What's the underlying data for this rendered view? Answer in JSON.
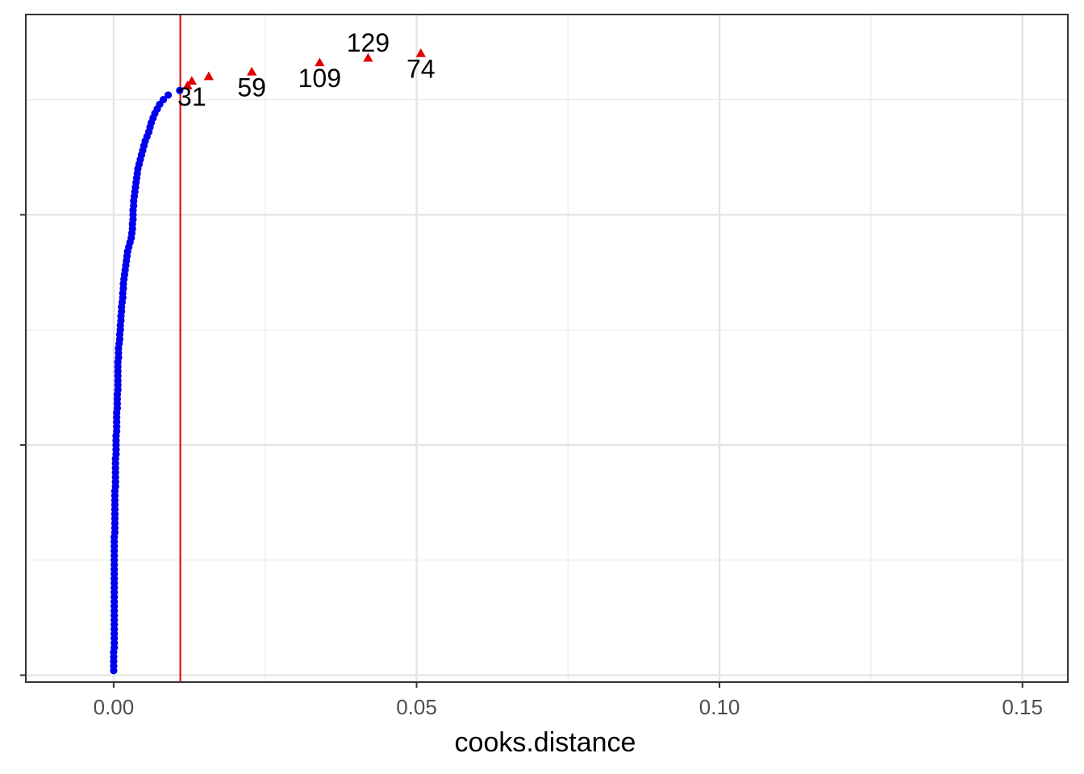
{
  "chart_data": {
    "type": "scatter",
    "title": "",
    "xlabel": "cooks.distance",
    "ylabel": "",
    "xlim": [
      -0.0145,
      0.1575
    ],
    "ylim": [
      -1.5,
      143.5
    ],
    "x_ticks": [
      0.0,
      0.05,
      0.1,
      0.15
    ],
    "x_tick_labels": [
      "0.00",
      "0.05",
      "0.10",
      "0.15"
    ],
    "x_minor_ticks": [
      0.025,
      0.075,
      0.125
    ],
    "y_major_ticks": [
      0,
      50,
      100
    ],
    "y_minor_ticks": [
      25,
      75,
      125
    ],
    "y_tick_labels_shown": false,
    "grid": true,
    "threshold": {
      "axis": "x",
      "value": 0.011,
      "color": "#e00000"
    },
    "series": [
      {
        "marker": "circle",
        "color": "#0000ee",
        "count": 126,
        "note_x": "sorted Cook's distances plotted against rank",
        "points": [
          [
            0.0,
            1
          ],
          [
            0.0,
            2
          ],
          [
            0.0,
            3
          ],
          [
            0.0,
            4
          ],
          [
            0.0,
            5
          ],
          [
            0.0001,
            6
          ],
          [
            0.0001,
            7
          ],
          [
            0.0001,
            8
          ],
          [
            0.0001,
            9
          ],
          [
            0.0001,
            10
          ],
          [
            0.0001,
            11
          ],
          [
            0.0001,
            12
          ],
          [
            0.0001,
            13
          ],
          [
            0.0001,
            14
          ],
          [
            0.0001,
            15
          ],
          [
            0.0001,
            16
          ],
          [
            0.0001,
            17
          ],
          [
            0.0001,
            18
          ],
          [
            0.0001,
            19
          ],
          [
            0.0001,
            20
          ],
          [
            0.0001,
            21
          ],
          [
            0.0001,
            22
          ],
          [
            0.0001,
            23
          ],
          [
            0.0001,
            24
          ],
          [
            0.0001,
            25
          ],
          [
            0.0001,
            26
          ],
          [
            0.0001,
            27
          ],
          [
            0.0001,
            28
          ],
          [
            0.0001,
            29
          ],
          [
            0.0001,
            30
          ],
          [
            0.0002,
            31
          ],
          [
            0.0002,
            32
          ],
          [
            0.0002,
            33
          ],
          [
            0.0002,
            34
          ],
          [
            0.0002,
            35
          ],
          [
            0.0002,
            36
          ],
          [
            0.0002,
            37
          ],
          [
            0.0002,
            38
          ],
          [
            0.0002,
            39
          ],
          [
            0.0002,
            40
          ],
          [
            0.0003,
            41
          ],
          [
            0.0003,
            42
          ],
          [
            0.0003,
            43
          ],
          [
            0.0003,
            44
          ],
          [
            0.0003,
            45
          ],
          [
            0.0003,
            46
          ],
          [
            0.0003,
            47
          ],
          [
            0.0004,
            48
          ],
          [
            0.0004,
            49
          ],
          [
            0.0004,
            50
          ],
          [
            0.0004,
            51
          ],
          [
            0.0004,
            52
          ],
          [
            0.0005,
            53
          ],
          [
            0.0005,
            54
          ],
          [
            0.0005,
            55
          ],
          [
            0.0005,
            56
          ],
          [
            0.0005,
            57
          ],
          [
            0.0006,
            58
          ],
          [
            0.0006,
            59
          ],
          [
            0.0006,
            60
          ],
          [
            0.0006,
            61
          ],
          [
            0.0007,
            62
          ],
          [
            0.0007,
            63
          ],
          [
            0.0007,
            64
          ],
          [
            0.0007,
            65
          ],
          [
            0.0007,
            66
          ],
          [
            0.0007,
            67
          ],
          [
            0.0007,
            68
          ],
          [
            0.0008,
            69
          ],
          [
            0.0008,
            70
          ],
          [
            0.0008,
            71
          ],
          [
            0.0009,
            72
          ],
          [
            0.001,
            73
          ],
          [
            0.001,
            74
          ],
          [
            0.0011,
            75
          ],
          [
            0.0011,
            76
          ],
          [
            0.0012,
            77
          ],
          [
            0.0012,
            78
          ],
          [
            0.0013,
            79
          ],
          [
            0.0013,
            80
          ],
          [
            0.0014,
            81
          ],
          [
            0.0015,
            82
          ],
          [
            0.0015,
            83
          ],
          [
            0.0016,
            84
          ],
          [
            0.0016,
            85
          ],
          [
            0.0017,
            86
          ],
          [
            0.0018,
            87
          ],
          [
            0.0019,
            88
          ],
          [
            0.002,
            89
          ],
          [
            0.0021,
            90
          ],
          [
            0.0022,
            91
          ],
          [
            0.0023,
            92
          ],
          [
            0.0025,
            93
          ],
          [
            0.0027,
            94
          ],
          [
            0.0029,
            95
          ],
          [
            0.003,
            96
          ],
          [
            0.0031,
            97
          ],
          [
            0.0031,
            98
          ],
          [
            0.0032,
            99
          ],
          [
            0.0032,
            100
          ],
          [
            0.0032,
            101
          ],
          [
            0.0033,
            102
          ],
          [
            0.0033,
            103
          ],
          [
            0.0034,
            104
          ],
          [
            0.0035,
            105
          ],
          [
            0.0036,
            106
          ],
          [
            0.0037,
            107
          ],
          [
            0.0038,
            108
          ],
          [
            0.0039,
            109
          ],
          [
            0.004,
            110
          ],
          [
            0.0042,
            111
          ],
          [
            0.0044,
            112
          ],
          [
            0.0046,
            113
          ],
          [
            0.0048,
            114
          ],
          [
            0.005,
            115
          ],
          [
            0.0052,
            116
          ],
          [
            0.0055,
            117
          ],
          [
            0.0058,
            118
          ],
          [
            0.006,
            119
          ],
          [
            0.0062,
            120
          ],
          [
            0.0065,
            121
          ],
          [
            0.0068,
            122
          ],
          [
            0.0072,
            123
          ],
          [
            0.0076,
            124
          ],
          [
            0.0082,
            125
          ],
          [
            0.009,
            126
          ]
        ]
      },
      {
        "marker": "circle",
        "color": "#0000ee",
        "points": [
          [
            0.0109,
            127
          ]
        ]
      },
      {
        "marker": "triangle",
        "color": "#e00000",
        "points": [
          [
            0.0122,
            128,
            ""
          ],
          [
            0.0129,
            129,
            "31"
          ],
          [
            0.0157,
            130,
            ""
          ],
          [
            0.0228,
            131,
            "59"
          ],
          [
            0.034,
            133,
            "109"
          ],
          [
            0.042,
            134,
            "129"
          ],
          [
            0.0507,
            135,
            "74"
          ]
        ]
      }
    ],
    "labels": [
      {
        "text": "31",
        "x": 0.0129,
        "y": 129,
        "pos": "below"
      },
      {
        "text": "59",
        "x": 0.0228,
        "y": 131,
        "pos": "below"
      },
      {
        "text": "109",
        "x": 0.034,
        "y": 133,
        "pos": "below"
      },
      {
        "text": "129",
        "x": 0.042,
        "y": 134,
        "pos": "above"
      },
      {
        "text": "74",
        "x": 0.0507,
        "y": 135,
        "pos": "below"
      }
    ]
  }
}
